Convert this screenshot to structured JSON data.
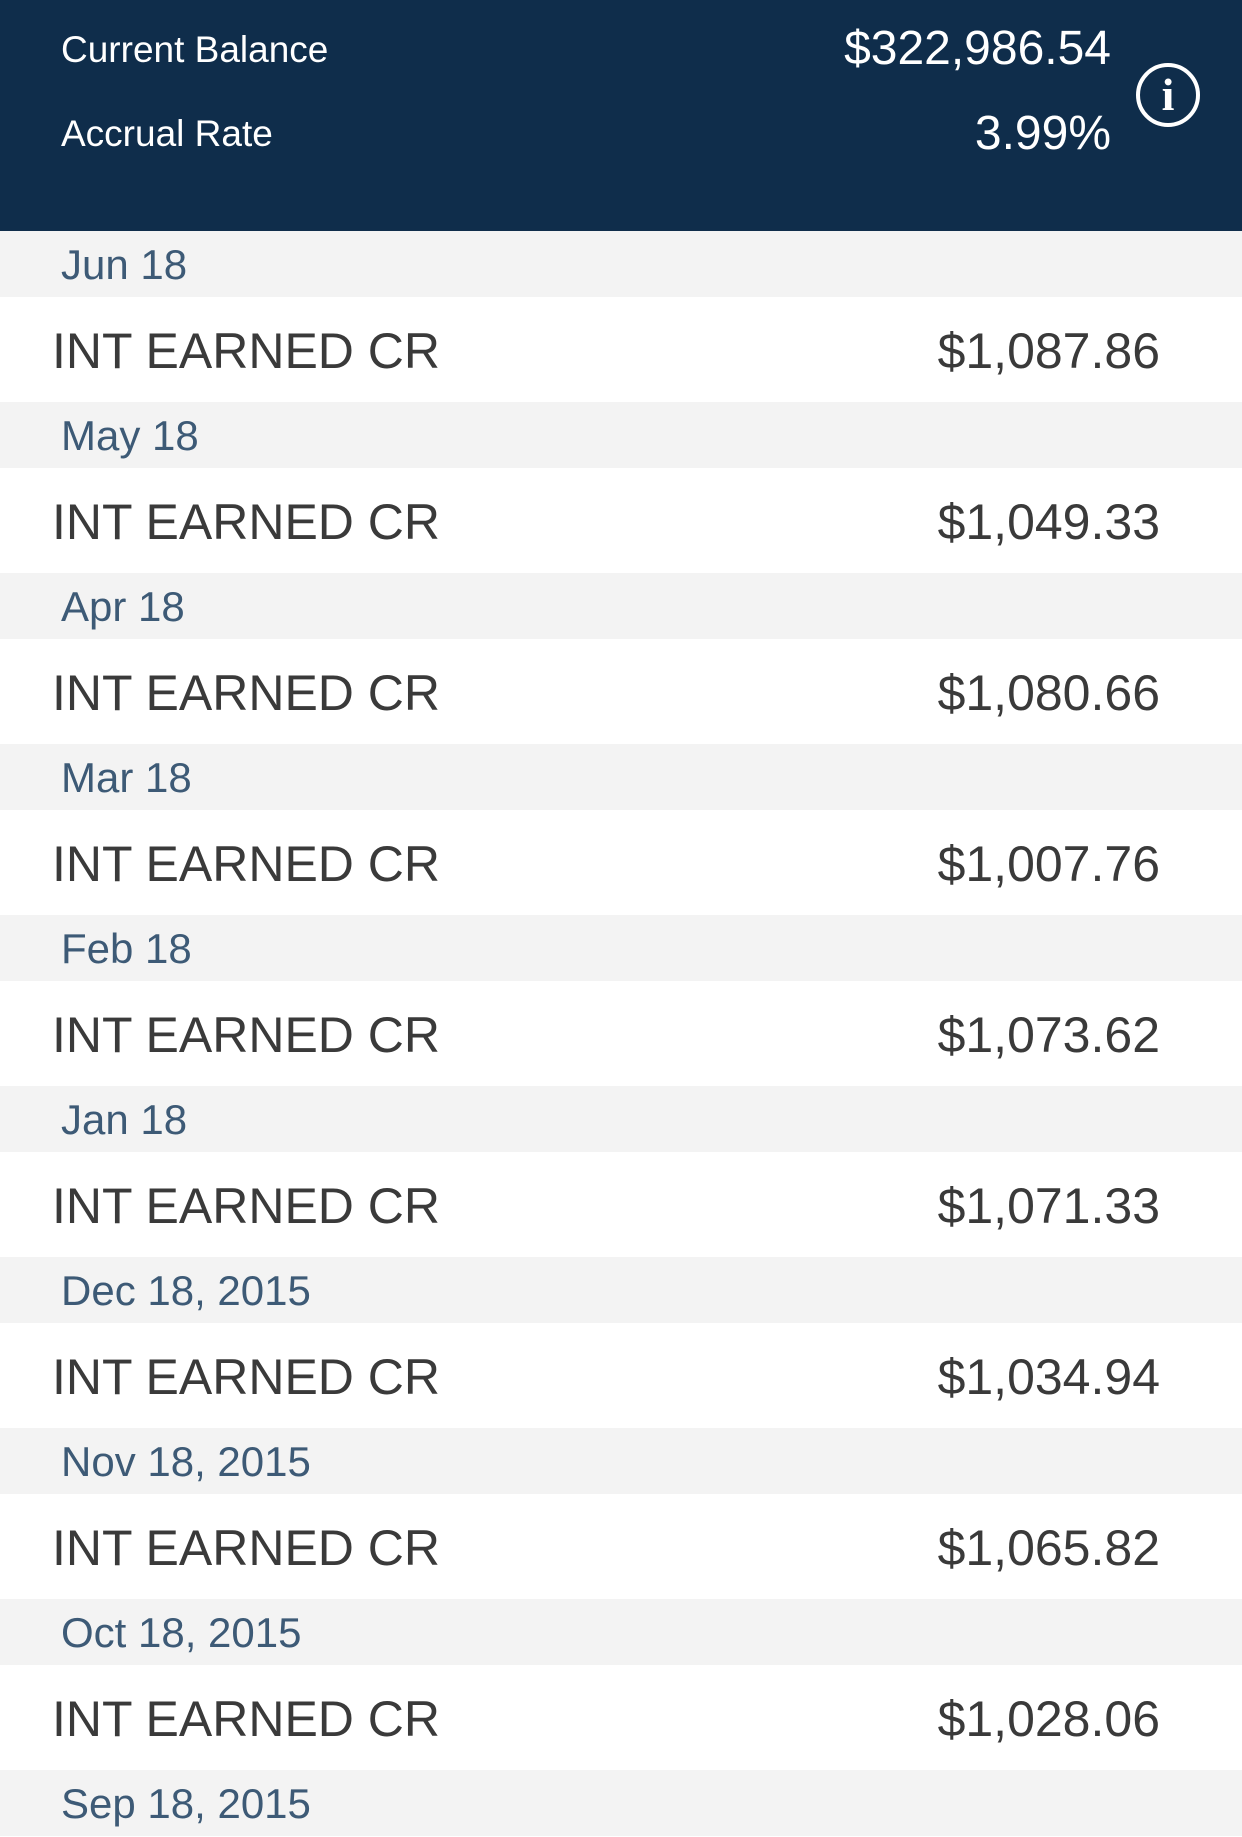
{
  "header": {
    "balance_label": "Current Balance",
    "balance_value": "$322,986.54",
    "rate_label": "Accrual Rate",
    "rate_value": "3.99%",
    "info_icon_glyph": "i",
    "info_icon": "info-icon",
    "background_color": "#0f2d4b"
  },
  "transactions": [
    {
      "date": "Jun 18",
      "description": "INT EARNED CR",
      "amount": "$1,087.86"
    },
    {
      "date": "May 18",
      "description": "INT EARNED CR",
      "amount": "$1,049.33"
    },
    {
      "date": "Apr 18",
      "description": "INT EARNED CR",
      "amount": "$1,080.66"
    },
    {
      "date": "Mar 18",
      "description": "INT EARNED CR",
      "amount": "$1,007.76"
    },
    {
      "date": "Feb 18",
      "description": "INT EARNED CR",
      "amount": "$1,073.62"
    },
    {
      "date": "Jan 18",
      "description": "INT EARNED CR",
      "amount": "$1,071.33"
    },
    {
      "date": "Dec 18, 2015",
      "description": "INT EARNED CR",
      "amount": "$1,034.94"
    },
    {
      "date": "Nov 18, 2015",
      "description": "INT EARNED CR",
      "amount": "$1,065.82"
    },
    {
      "date": "Oct 18, 2015",
      "description": "INT EARNED CR",
      "amount": "$1,028.06"
    },
    {
      "date": "Sep 18, 2015"
    }
  ]
}
